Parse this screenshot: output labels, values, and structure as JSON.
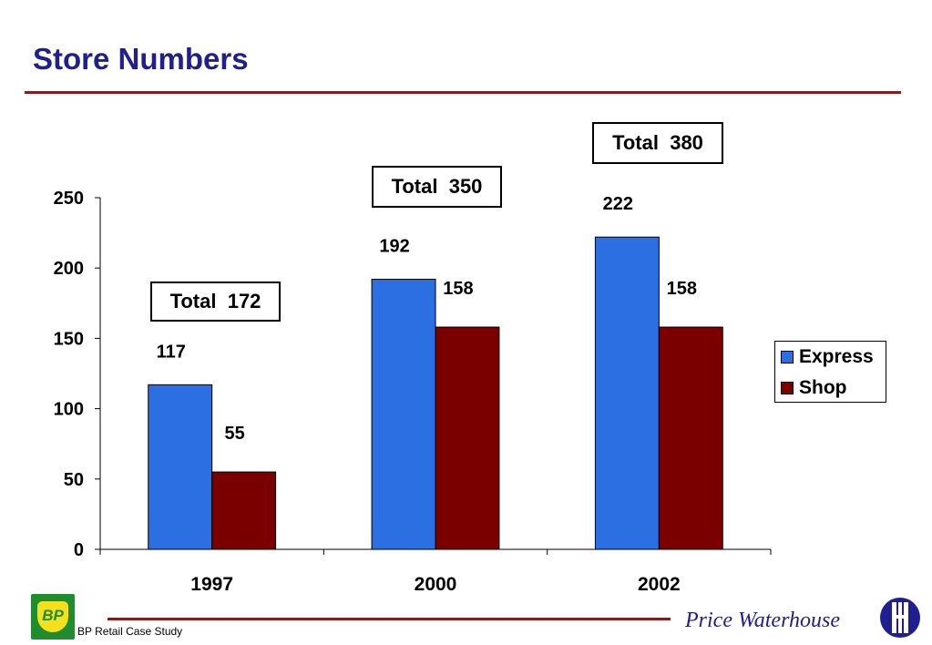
{
  "slide": {
    "title": "Store Numbers",
    "footer_caption": "BP Retail Case Study",
    "brand_text": "Price Waterhouse",
    "bp_logo_text": "BP"
  },
  "colors": {
    "express": "#2b6fe3",
    "shop": "#7a0000",
    "title": "#1f1f8f",
    "rule": "#8b1a1a"
  },
  "chart_data": {
    "type": "bar",
    "title": "",
    "xlabel": "",
    "ylabel": "",
    "categories": [
      "1997",
      "2000",
      "2002"
    ],
    "series": [
      {
        "name": "Express",
        "values": [
          117,
          192,
          222
        ]
      },
      {
        "name": "Shop",
        "values": [
          55,
          158,
          158
        ]
      }
    ],
    "ylim": [
      0,
      250
    ],
    "yticks": [
      0,
      50,
      100,
      150,
      200,
      250
    ],
    "grid": false,
    "legend": "right",
    "data_labels": true,
    "totals": [
      "Total  172",
      "Total  350",
      "Total  380"
    ]
  }
}
